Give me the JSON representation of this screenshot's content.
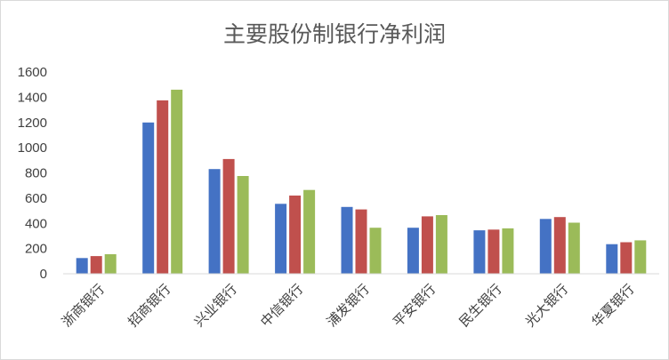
{
  "chart_data": {
    "type": "bar",
    "title": "主要股份制银行净利润",
    "xlabel": "",
    "ylabel": "",
    "ylim": [
      0,
      1600
    ],
    "yticks": [
      0,
      200,
      400,
      600,
      800,
      1000,
      1200,
      1400,
      1600
    ],
    "grid": false,
    "legend": "none",
    "categories": [
      "浙商银行",
      "招商银行",
      "兴业银行",
      "中信银行",
      "浦发银行",
      "平安银行",
      "民生银行",
      "光大银行",
      "华夏银行"
    ],
    "series": [
      {
        "color": "#4472C4",
        "values": [
          125,
          1200,
          830,
          555,
          530,
          365,
          345,
          435,
          235
        ]
      },
      {
        "color": "#C0504D",
        "values": [
          140,
          1375,
          910,
          620,
          510,
          455,
          350,
          450,
          250
        ]
      },
      {
        "color": "#9BBB59",
        "values": [
          155,
          1460,
          775,
          665,
          365,
          465,
          360,
          405,
          265
        ]
      }
    ]
  }
}
